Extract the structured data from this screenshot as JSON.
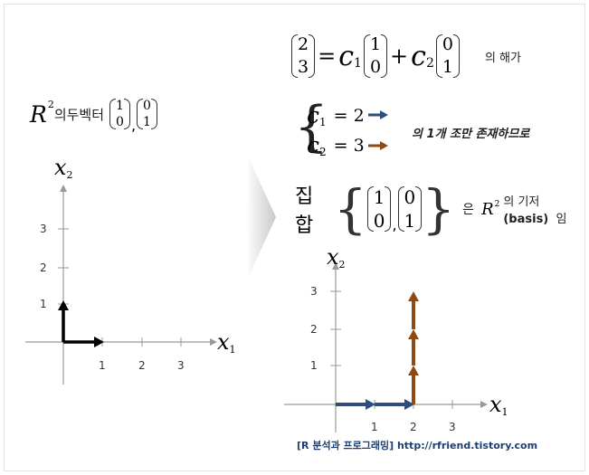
{
  "left_title": {
    "R": "R",
    "exp": "2",
    "text": "의두벡터",
    "v1": [
      "1",
      "0"
    ],
    "v2": [
      "0",
      "1"
    ]
  },
  "equation": {
    "lhs": [
      "2",
      "3"
    ],
    "c1": "c",
    "c1_sub": "1",
    "c2": "c",
    "c2_sub": "2",
    "v1": [
      "1",
      "0"
    ],
    "v2": [
      "0",
      "1"
    ],
    "suffix": "의 해가"
  },
  "solution": {
    "c1": "c",
    "c1_sub": "1",
    "c1_val": "= 2",
    "c2": "c",
    "c2_sub": "2",
    "c2_val": "= 3",
    "note": "의 1개 조만 존재하므로"
  },
  "conclusion": {
    "prefix": "집 합",
    "v1": [
      "1",
      "0"
    ],
    "v2": [
      "0",
      "1"
    ],
    "text1": "은",
    "R": "R",
    "exp": "2",
    "text2": "의 기저",
    "basis": "(basis)",
    "text3": "임"
  },
  "plot_left": {
    "xlabel": "x",
    "xlabel_sub": "1",
    "ylabel": "x",
    "ylabel_sub": "2",
    "xticks": [
      "1",
      "2",
      "3"
    ],
    "yticks": [
      "1",
      "2",
      "3"
    ]
  },
  "plot_right": {
    "xlabel": "x",
    "xlabel_sub": "1",
    "ylabel": "x",
    "ylabel_sub": "2",
    "xticks": [
      "1",
      "2",
      "3"
    ],
    "yticks": [
      "1",
      "2",
      "3"
    ]
  },
  "footer": "[R 분석과 프로그래밍]   http://rfriend.tistory.com",
  "colors": {
    "blue": "#2e4d7a",
    "brown": "#8b4a16",
    "black": "#000000",
    "axis": "#999999"
  }
}
